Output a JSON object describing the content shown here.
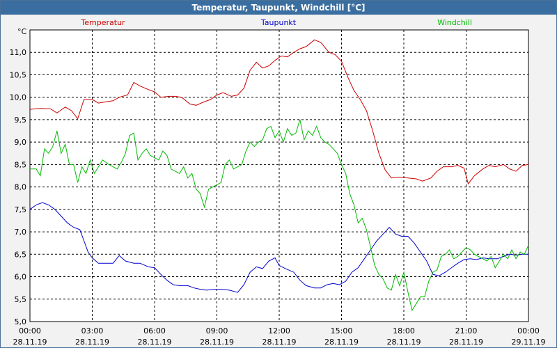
{
  "window": {
    "title": "Temperatur, Taupunkt, Windchill [°C]"
  },
  "colors": {
    "plot_bg": "#ffffff",
    "grid": "#000000",
    "temperatur": "#cc0000",
    "taupunkt": "#0000cc",
    "windchill": "#00bb00"
  },
  "chart_data": {
    "type": "line",
    "title": "Temperatur, Taupunkt, Windchill [°C]",
    "ylabel": "°C",
    "xlabel": "",
    "ylim": [
      5.0,
      11.5
    ],
    "xlim_hours": [
      0,
      24
    ],
    "grid": true,
    "yticks": [
      5.0,
      5.5,
      6.0,
      6.5,
      7.0,
      7.5,
      8.0,
      8.5,
      9.0,
      9.5,
      10.0,
      10.5,
      11.0
    ],
    "ytick_labels": [
      "5,0",
      "5,5",
      "6,0",
      "6,5",
      "7,0",
      "7,5",
      "8,0",
      "8,5",
      "9,0",
      "9,5",
      "10,0",
      "10,5",
      "11,0"
    ],
    "xticks": [
      {
        "hour": 0,
        "time": "00:00",
        "date": "28.11.19"
      },
      {
        "hour": 3,
        "time": "03:00",
        "date": "28.11.19"
      },
      {
        "hour": 6,
        "time": "06:00",
        "date": "28.11.19"
      },
      {
        "hour": 9,
        "time": "09:00",
        "date": "28.11.19"
      },
      {
        "hour": 12,
        "time": "12:00",
        "date": "28.11.19"
      },
      {
        "hour": 15,
        "time": "15:00",
        "date": "28.11.19"
      },
      {
        "hour": 18,
        "time": "18:00",
        "date": "28.11.19"
      },
      {
        "hour": 21,
        "time": "21:00",
        "date": "28.11.19"
      },
      {
        "hour": 24,
        "time": "00:00",
        "date": "29.11.19"
      }
    ],
    "series": [
      {
        "name": "Temperatur",
        "color": "#cc0000",
        "points": [
          [
            0,
            9.73
          ],
          [
            0.5,
            9.75
          ],
          [
            1,
            9.74
          ],
          [
            1.3,
            9.65
          ],
          [
            1.7,
            9.78
          ],
          [
            2.0,
            9.7
          ],
          [
            2.3,
            9.52
          ],
          [
            2.6,
            9.95
          ],
          [
            3.0,
            9.95
          ],
          [
            3.3,
            9.87
          ],
          [
            3.7,
            9.9
          ],
          [
            4.0,
            9.92
          ],
          [
            4.3,
            10.0
          ],
          [
            4.7,
            10.05
          ],
          [
            5.0,
            10.33
          ],
          [
            5.3,
            10.25
          ],
          [
            5.7,
            10.17
          ],
          [
            6.0,
            10.12
          ],
          [
            6.3,
            10.0
          ],
          [
            6.7,
            10.02
          ],
          [
            7.0,
            10.02
          ],
          [
            7.3,
            10.0
          ],
          [
            7.7,
            9.85
          ],
          [
            8.0,
            9.82
          ],
          [
            8.3,
            9.88
          ],
          [
            8.7,
            9.95
          ],
          [
            9.0,
            10.05
          ],
          [
            9.3,
            10.1
          ],
          [
            9.7,
            10.02
          ],
          [
            10.0,
            10.05
          ],
          [
            10.3,
            10.2
          ],
          [
            10.6,
            10.6
          ],
          [
            10.9,
            10.78
          ],
          [
            11.2,
            10.65
          ],
          [
            11.5,
            10.7
          ],
          [
            11.8,
            10.82
          ],
          [
            12.1,
            10.92
          ],
          [
            12.4,
            10.9
          ],
          [
            12.7,
            11.0
          ],
          [
            13.0,
            11.08
          ],
          [
            13.3,
            11.13
          ],
          [
            13.7,
            11.28
          ],
          [
            14.0,
            11.22
          ],
          [
            14.4,
            11.0
          ],
          [
            14.7,
            10.95
          ],
          [
            15.0,
            10.8
          ],
          [
            15.3,
            10.45
          ],
          [
            15.6,
            10.15
          ],
          [
            15.9,
            9.95
          ],
          [
            16.2,
            9.7
          ],
          [
            16.5,
            9.25
          ],
          [
            16.8,
            8.75
          ],
          [
            17.1,
            8.38
          ],
          [
            17.4,
            8.2
          ],
          [
            17.8,
            8.22
          ],
          [
            18.2,
            8.2
          ],
          [
            18.6,
            8.18
          ],
          [
            18.9,
            8.13
          ],
          [
            19.3,
            8.2
          ],
          [
            19.6,
            8.35
          ],
          [
            19.9,
            8.45
          ],
          [
            20.3,
            8.45
          ],
          [
            20.6,
            8.48
          ],
          [
            20.9,
            8.42
          ],
          [
            21.1,
            8.07
          ],
          [
            21.4,
            8.25
          ],
          [
            21.8,
            8.4
          ],
          [
            22.1,
            8.48
          ],
          [
            22.4,
            8.45
          ],
          [
            22.8,
            8.5
          ],
          [
            23.1,
            8.4
          ],
          [
            23.4,
            8.35
          ],
          [
            23.7,
            8.48
          ],
          [
            24.0,
            8.5
          ]
        ]
      },
      {
        "name": "Taupunkt",
        "color": "#0000cc",
        "points": [
          [
            0,
            7.5
          ],
          [
            0.3,
            7.6
          ],
          [
            0.6,
            7.65
          ],
          [
            0.9,
            7.6
          ],
          [
            1.2,
            7.5
          ],
          [
            1.5,
            7.35
          ],
          [
            1.8,
            7.2
          ],
          [
            2.1,
            7.1
          ],
          [
            2.4,
            7.05
          ],
          [
            2.6,
            6.8
          ],
          [
            2.8,
            6.55
          ],
          [
            3.0,
            6.42
          ],
          [
            3.3,
            6.3
          ],
          [
            3.7,
            6.3
          ],
          [
            4.0,
            6.3
          ],
          [
            4.3,
            6.47
          ],
          [
            4.6,
            6.35
          ],
          [
            5.0,
            6.3
          ],
          [
            5.3,
            6.3
          ],
          [
            5.7,
            6.22
          ],
          [
            6.0,
            6.2
          ],
          [
            6.3,
            6.05
          ],
          [
            6.6,
            5.92
          ],
          [
            6.9,
            5.82
          ],
          [
            7.2,
            5.8
          ],
          [
            7.6,
            5.8
          ],
          [
            7.9,
            5.75
          ],
          [
            8.2,
            5.72
          ],
          [
            8.5,
            5.7
          ],
          [
            8.9,
            5.72
          ],
          [
            9.2,
            5.72
          ],
          [
            9.6,
            5.7
          ],
          [
            10.0,
            5.65
          ],
          [
            10.3,
            5.82
          ],
          [
            10.6,
            6.1
          ],
          [
            10.9,
            6.22
          ],
          [
            11.2,
            6.18
          ],
          [
            11.5,
            6.35
          ],
          [
            11.8,
            6.42
          ],
          [
            12.0,
            6.25
          ],
          [
            12.3,
            6.18
          ],
          [
            12.7,
            6.1
          ],
          [
            13.0,
            5.92
          ],
          [
            13.3,
            5.8
          ],
          [
            13.7,
            5.75
          ],
          [
            14.0,
            5.75
          ],
          [
            14.3,
            5.82
          ],
          [
            14.6,
            5.85
          ],
          [
            14.9,
            5.82
          ],
          [
            15.2,
            5.9
          ],
          [
            15.5,
            6.1
          ],
          [
            15.8,
            6.2
          ],
          [
            16.1,
            6.4
          ],
          [
            16.4,
            6.6
          ],
          [
            16.7,
            6.8
          ],
          [
            17.0,
            6.95
          ],
          [
            17.3,
            7.1
          ],
          [
            17.6,
            6.95
          ],
          [
            17.9,
            6.9
          ],
          [
            18.2,
            6.9
          ],
          [
            18.5,
            6.75
          ],
          [
            18.8,
            6.55
          ],
          [
            19.1,
            6.35
          ],
          [
            19.4,
            6.05
          ],
          [
            19.7,
            6.02
          ],
          [
            20.0,
            6.1
          ],
          [
            20.3,
            6.2
          ],
          [
            20.6,
            6.3
          ],
          [
            20.9,
            6.38
          ],
          [
            21.2,
            6.4
          ],
          [
            21.5,
            6.38
          ],
          [
            21.8,
            6.42
          ],
          [
            22.1,
            6.4
          ],
          [
            22.5,
            6.4
          ],
          [
            22.8,
            6.45
          ],
          [
            23.1,
            6.5
          ],
          [
            23.4,
            6.48
          ],
          [
            23.7,
            6.5
          ],
          [
            24.0,
            6.5
          ]
        ]
      },
      {
        "name": "Windchill",
        "color": "#00bb00",
        "points": [
          [
            0,
            8.4
          ],
          [
            0.3,
            8.4
          ],
          [
            0.5,
            8.25
          ],
          [
            0.7,
            8.85
          ],
          [
            0.9,
            8.75
          ],
          [
            1.1,
            8.9
          ],
          [
            1.3,
            9.25
          ],
          [
            1.5,
            8.75
          ],
          [
            1.7,
            8.95
          ],
          [
            1.9,
            8.5
          ],
          [
            2.1,
            8.5
          ],
          [
            2.3,
            8.1
          ],
          [
            2.5,
            8.45
          ],
          [
            2.7,
            8.3
          ],
          [
            2.9,
            8.6
          ],
          [
            3.1,
            8.3
          ],
          [
            3.3,
            8.45
          ],
          [
            3.5,
            8.6
          ],
          [
            3.8,
            8.5
          ],
          [
            4.0,
            8.45
          ],
          [
            4.2,
            8.4
          ],
          [
            4.4,
            8.55
          ],
          [
            4.6,
            8.75
          ],
          [
            4.8,
            9.15
          ],
          [
            5.0,
            9.2
          ],
          [
            5.2,
            8.6
          ],
          [
            5.4,
            8.75
          ],
          [
            5.6,
            8.85
          ],
          [
            5.8,
            8.7
          ],
          [
            6.0,
            8.65
          ],
          [
            6.2,
            8.6
          ],
          [
            6.4,
            8.8
          ],
          [
            6.6,
            8.7
          ],
          [
            6.8,
            8.4
          ],
          [
            7.0,
            8.35
          ],
          [
            7.2,
            8.3
          ],
          [
            7.4,
            8.45
          ],
          [
            7.6,
            8.2
          ],
          [
            7.8,
            8.3
          ],
          [
            8.0,
            7.95
          ],
          [
            8.2,
            7.85
          ],
          [
            8.4,
            7.55
          ],
          [
            8.6,
            7.95
          ],
          [
            8.8,
            8.0
          ],
          [
            9.0,
            8.05
          ],
          [
            9.2,
            8.1
          ],
          [
            9.4,
            8.5
          ],
          [
            9.6,
            8.6
          ],
          [
            9.8,
            8.4
          ],
          [
            10.0,
            8.45
          ],
          [
            10.2,
            8.5
          ],
          [
            10.4,
            8.8
          ],
          [
            10.6,
            9.0
          ],
          [
            10.8,
            8.9
          ],
          [
            11.0,
            9.0
          ],
          [
            11.2,
            9.05
          ],
          [
            11.4,
            9.3
          ],
          [
            11.6,
            9.35
          ],
          [
            11.8,
            9.1
          ],
          [
            12.0,
            9.25
          ],
          [
            12.2,
            9.0
          ],
          [
            12.4,
            9.3
          ],
          [
            12.6,
            9.15
          ],
          [
            12.8,
            9.2
          ],
          [
            13.0,
            9.5
          ],
          [
            13.2,
            9.05
          ],
          [
            13.4,
            9.25
          ],
          [
            13.6,
            9.15
          ],
          [
            13.8,
            9.35
          ],
          [
            14.0,
            9.1
          ],
          [
            14.2,
            9.0
          ],
          [
            14.4,
            8.95
          ],
          [
            14.6,
            8.85
          ],
          [
            14.8,
            8.75
          ],
          [
            15.0,
            8.5
          ],
          [
            15.2,
            8.3
          ],
          [
            15.4,
            7.85
          ],
          [
            15.6,
            7.6
          ],
          [
            15.8,
            7.2
          ],
          [
            16.0,
            7.3
          ],
          [
            16.2,
            7.05
          ],
          [
            16.4,
            6.65
          ],
          [
            16.6,
            6.25
          ],
          [
            16.8,
            6.05
          ],
          [
            17.0,
            5.95
          ],
          [
            17.2,
            5.75
          ],
          [
            17.4,
            5.7
          ],
          [
            17.6,
            6.05
          ],
          [
            17.8,
            5.8
          ],
          [
            18.0,
            6.1
          ],
          [
            18.2,
            5.65
          ],
          [
            18.4,
            5.25
          ],
          [
            18.6,
            5.4
          ],
          [
            18.8,
            5.55
          ],
          [
            19.0,
            5.55
          ],
          [
            19.2,
            5.9
          ],
          [
            19.4,
            6.1
          ],
          [
            19.6,
            6.15
          ],
          [
            19.8,
            6.45
          ],
          [
            20.0,
            6.5
          ],
          [
            20.2,
            6.6
          ],
          [
            20.4,
            6.4
          ],
          [
            20.6,
            6.45
          ],
          [
            20.8,
            6.55
          ],
          [
            21.0,
            6.65
          ],
          [
            21.2,
            6.6
          ],
          [
            21.4,
            6.5
          ],
          [
            21.6,
            6.45
          ],
          [
            21.8,
            6.4
          ],
          [
            22.0,
            6.35
          ],
          [
            22.2,
            6.45
          ],
          [
            22.4,
            6.2
          ],
          [
            22.6,
            6.35
          ],
          [
            22.8,
            6.5
          ],
          [
            23.0,
            6.4
          ],
          [
            23.2,
            6.6
          ],
          [
            23.4,
            6.4
          ],
          [
            23.6,
            6.55
          ],
          [
            23.8,
            6.5
          ],
          [
            24.0,
            6.7
          ]
        ]
      }
    ],
    "legend": [
      "Temperatur",
      "Taupunkt",
      "Windchill"
    ]
  }
}
